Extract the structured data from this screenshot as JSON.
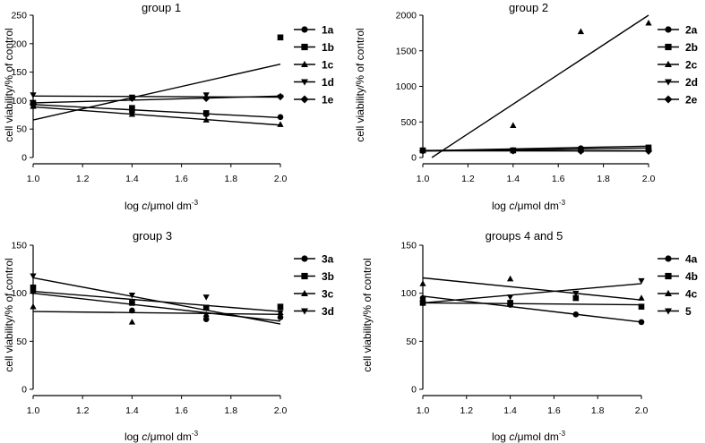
{
  "chart_data": [
    {
      "type": "scatter",
      "title": "group 1",
      "xlabel": "log c/μmol dm⁻³",
      "xlabel_parts": [
        "log ",
        "c",
        "/μmol dm",
        "-3"
      ],
      "ylabel": "cell viability/% of control",
      "xlim": [
        1.0,
        2.0
      ],
      "ylim": [
        0,
        250
      ],
      "xticks": [
        1.0,
        1.2,
        1.4,
        1.6,
        1.8,
        2.0
      ],
      "xtick_labels": [
        "1.0",
        "1.2",
        "1.4",
        "1.6",
        "1.8",
        "2.0"
      ],
      "yticks": [
        0,
        50,
        100,
        150,
        200,
        250
      ],
      "ytick_labels": [
        "0",
        "50",
        "100",
        "150",
        "200",
        "250"
      ],
      "series": [
        {
          "name": "1a",
          "marker": "circle",
          "points": [
            [
              1.0,
              93
            ],
            [
              1.4,
              80
            ],
            [
              1.7,
              76
            ],
            [
              2.0,
              71
            ]
          ],
          "fit": [
            [
              1.0,
              93
            ],
            [
              2.0,
              70
            ]
          ]
        },
        {
          "name": "1b",
          "marker": "square",
          "points": [
            [
              1.0,
              96
            ],
            [
              1.4,
              87
            ],
            [
              1.7,
              78
            ],
            [
              2.0,
              211
            ]
          ],
          "fit": [
            [
              1.0,
              66
            ],
            [
              2.0,
              164
            ]
          ]
        },
        {
          "name": "1c",
          "marker": "triangle-up",
          "points": [
            [
              1.0,
              90
            ],
            [
              1.4,
              76
            ],
            [
              1.7,
              66
            ],
            [
              2.0,
              58
            ]
          ],
          "fit": [
            [
              1.0,
              89
            ],
            [
              2.0,
              57
            ]
          ]
        },
        {
          "name": "1d",
          "marker": "triangle-down",
          "points": [
            [
              1.0,
              110
            ],
            [
              1.4,
              106
            ],
            [
              1.7,
              110
            ],
            [
              2.0,
              106
            ]
          ],
          "fit": [
            [
              1.0,
              108
            ],
            [
              2.0,
              106
            ]
          ]
        },
        {
          "name": "1e",
          "marker": "diamond",
          "points": [
            [
              1.0,
              94
            ],
            [
              1.4,
              104
            ],
            [
              1.7,
              104
            ],
            [
              2.0,
              107
            ]
          ],
          "fit": [
            [
              1.0,
              96
            ],
            [
              2.0,
              108
            ]
          ]
        }
      ]
    },
    {
      "type": "scatter",
      "title": "group 2",
      "xlabel": "log c/μmol dm⁻³",
      "xlabel_parts": [
        "log ",
        "c",
        "/μmol dm",
        "-3"
      ],
      "ylabel": "cell viability/% of control",
      "xlim": [
        1.0,
        2.0
      ],
      "ylim": [
        0,
        2000
      ],
      "xticks": [
        1.0,
        1.2,
        1.4,
        1.6,
        1.8,
        2.0
      ],
      "xtick_labels": [
        "1.0",
        "1.2",
        "1.4",
        "1.6",
        "1.8",
        "2.0"
      ],
      "yticks": [
        0,
        500,
        1000,
        1500,
        2000
      ],
      "ytick_labels": [
        "0",
        "500",
        "1000",
        "1500",
        "2000"
      ],
      "series": [
        {
          "name": "2a",
          "marker": "circle",
          "points": [
            [
              1.0,
              95
            ],
            [
              1.4,
              100
            ],
            [
              1.7,
              130
            ],
            [
              2.0,
              120
            ]
          ],
          "fit": [
            [
              1.0,
              90
            ],
            [
              2.0,
              135
            ]
          ]
        },
        {
          "name": "2b",
          "marker": "square",
          "points": [
            [
              1.0,
              100
            ],
            [
              1.4,
              100
            ],
            [
              1.7,
              110
            ],
            [
              2.0,
              140
            ]
          ],
          "fit": [
            [
              1.0,
              95
            ],
            [
              2.0,
              160
            ]
          ]
        },
        {
          "name": "2c",
          "marker": "triangle-up",
          "points": [
            [
              1.0,
              100
            ],
            [
              1.4,
              450
            ],
            [
              1.7,
              1770
            ],
            [
              2.0,
              1890
            ]
          ],
          "fit": [
            [
              1.04,
              0
            ],
            [
              2.0,
              2000
            ]
          ]
        },
        {
          "name": "2d",
          "marker": "triangle-down",
          "points": [
            [
              1.0,
              100
            ],
            [
              1.4,
              100
            ],
            [
              1.7,
              95
            ],
            [
              2.0,
              90
            ]
          ],
          "fit": [
            [
              1.0,
              100
            ],
            [
              2.0,
              95
            ]
          ]
        },
        {
          "name": "2e",
          "marker": "diamond",
          "points": [
            [
              1.0,
              95
            ],
            [
              1.4,
              95
            ],
            [
              1.7,
              90
            ],
            [
              2.0,
              90
            ]
          ],
          "fit": [
            [
              1.0,
              95
            ],
            [
              2.0,
              90
            ]
          ]
        }
      ]
    },
    {
      "type": "scatter",
      "title": "group 3",
      "xlabel": "log c/μmol dm⁻³",
      "xlabel_parts": [
        "log ",
        "c",
        "/μmol dm",
        "-3"
      ],
      "ylabel": "cell viability/% of control",
      "xlim": [
        1.0,
        2.0
      ],
      "ylim": [
        0,
        150
      ],
      "xticks": [
        1.0,
        1.2,
        1.4,
        1.6,
        1.8,
        2.0
      ],
      "xtick_labels": [
        "1.0",
        "1.2",
        "1.4",
        "1.6",
        "1.8",
        "2.0"
      ],
      "yticks": [
        0,
        50,
        100,
        150
      ],
      "ytick_labels": [
        "0",
        "50",
        "100",
        "150"
      ],
      "series": [
        {
          "name": "3a",
          "marker": "circle",
          "points": [
            [
              1.0,
              102
            ],
            [
              1.4,
              82
            ],
            [
              1.7,
              73
            ],
            [
              2.0,
              75
            ]
          ],
          "fit": [
            [
              1.0,
              100
            ],
            [
              2.0,
              71
            ]
          ]
        },
        {
          "name": "3b",
          "marker": "square",
          "points": [
            [
              1.0,
              106
            ],
            [
              1.4,
              90
            ],
            [
              1.7,
              85
            ],
            [
              2.0,
              86
            ]
          ],
          "fit": [
            [
              1.0,
              102
            ],
            [
              2.0,
              81
            ]
          ]
        },
        {
          "name": "3c",
          "marker": "triangle-up",
          "points": [
            [
              1.0,
              86
            ],
            [
              1.4,
              70
            ],
            [
              1.7,
              78
            ],
            [
              2.0,
              80
            ]
          ],
          "fit": [
            [
              1.0,
              81
            ],
            [
              2.0,
              78
            ]
          ]
        },
        {
          "name": "3d",
          "marker": "triangle-down",
          "points": [
            [
              1.0,
              118
            ],
            [
              1.4,
              98
            ],
            [
              1.7,
              96
            ],
            [
              2.0,
              80
            ]
          ],
          "fit": [
            [
              1.0,
              116
            ],
            [
              2.0,
              68
            ]
          ]
        }
      ]
    },
    {
      "type": "scatter",
      "title": "groups 4 and 5",
      "xlabel": "log c/μmol dm⁻³",
      "xlabel_parts": [
        "log ",
        "c",
        "/μmol dm",
        "-3"
      ],
      "ylabel": "cell viability/% of control",
      "xlim": [
        1.0,
        2.0
      ],
      "ylim": [
        0,
        150
      ],
      "xticks": [
        1.0,
        1.2,
        1.4,
        1.6,
        1.8,
        2.0
      ],
      "xtick_labels": [
        "1.0",
        "1.2",
        "1.4",
        "1.6",
        "1.8",
        "2.0"
      ],
      "yticks": [
        0,
        50,
        100,
        150
      ],
      "ytick_labels": [
        "0",
        "50",
        "100",
        "150"
      ],
      "series": [
        {
          "name": "4a",
          "marker": "circle",
          "points": [
            [
              1.0,
              95
            ],
            [
              1.4,
              88
            ],
            [
              1.7,
              78
            ],
            [
              2.0,
              70
            ]
          ],
          "fit": [
            [
              1.0,
              97
            ],
            [
              2.0,
              70
            ]
          ]
        },
        {
          "name": "4b",
          "marker": "square",
          "points": [
            [
              1.0,
              90
            ],
            [
              1.4,
              90
            ],
            [
              1.7,
              95
            ],
            [
              2.0,
              86
            ]
          ],
          "fit": [
            [
              1.0,
              90
            ],
            [
              2.0,
              88
            ]
          ]
        },
        {
          "name": "4c",
          "marker": "triangle-up",
          "points": [
            [
              1.0,
              110
            ],
            [
              1.4,
              115
            ],
            [
              1.7,
              95
            ],
            [
              2.0,
              95
            ]
          ],
          "fit": [
            [
              1.0,
              116
            ],
            [
              2.0,
              93
            ]
          ]
        },
        {
          "name": "5",
          "marker": "triangle-down",
          "points": [
            [
              1.0,
              90
            ],
            [
              1.4,
              96
            ],
            [
              1.7,
              100
            ],
            [
              2.0,
              113
            ]
          ],
          "fit": [
            [
              1.0,
              90
            ],
            [
              2.0,
              110
            ]
          ]
        }
      ]
    }
  ]
}
